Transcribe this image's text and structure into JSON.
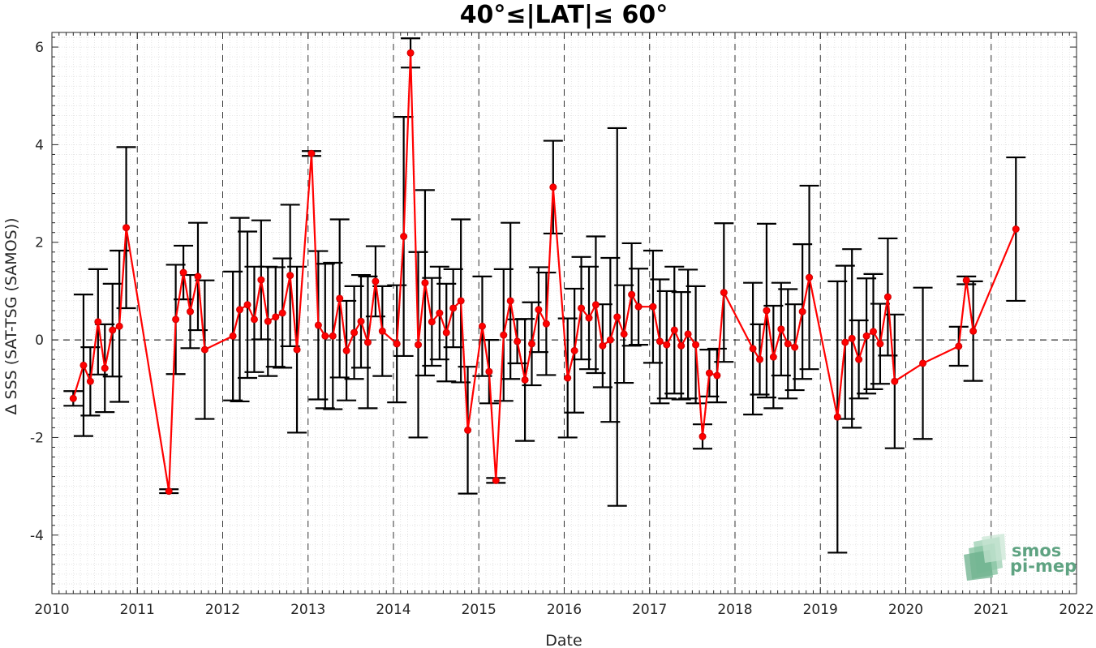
{
  "chart_data": {
    "type": "line",
    "title": "40°≤|LAT|≤ 60°",
    "xlabel": "Date",
    "ylabel": "Δ SSS (SAT-TSG (SAMOS))",
    "xlim": [
      2010,
      2022
    ],
    "ylim": [
      -5.2,
      6.3
    ],
    "x_ticks": [
      "2010",
      "2011",
      "2012",
      "2013",
      "2014",
      "2015",
      "2016",
      "2017",
      "2018",
      "2019",
      "2020",
      "2021",
      "2022"
    ],
    "y_ticks": [
      "-4",
      "-2",
      "0",
      "2",
      "4",
      "6"
    ],
    "grid": "minor dotted, year dashed lines, dashed zero line",
    "colors": {
      "line": "#ff0000",
      "errorbar": "#000000",
      "zero_line": "#000000",
      "logo": "#5fa382"
    },
    "logo": {
      "line1": "smos",
      "line2": "pi-mep"
    },
    "series": [
      {
        "points": [
          [
            2010.25,
            -1.2,
            0.15
          ],
          [
            2010.37,
            -0.52,
            1.45
          ],
          [
            2010.45,
            -0.85,
            0.7
          ],
          [
            2010.54,
            0.37,
            1.08
          ],
          [
            2010.62,
            -0.58,
            0.9
          ],
          [
            2010.71,
            0.2,
            0.95
          ],
          [
            2010.79,
            0.28,
            1.55
          ],
          [
            2010.87,
            2.3,
            1.65
          ],
          [
            2011.37,
            -3.1,
            0.04
          ],
          [
            2011.45,
            0.42,
            1.12
          ],
          [
            2011.54,
            1.38,
            0.55
          ],
          [
            2011.62,
            0.58,
            0.75
          ],
          [
            2011.71,
            1.3,
            1.1
          ],
          [
            2011.79,
            -0.2,
            1.42
          ],
          [
            2012.12,
            0.08,
            1.32
          ],
          [
            2012.2,
            0.62,
            1.88
          ],
          [
            2012.29,
            0.72,
            1.5
          ],
          [
            2012.37,
            0.42,
            1.08
          ],
          [
            2012.45,
            1.23,
            1.22
          ],
          [
            2012.53,
            0.38,
            1.12
          ],
          [
            2012.62,
            0.47,
            1.02
          ],
          [
            2012.7,
            0.55,
            1.12
          ],
          [
            2012.79,
            1.32,
            1.45
          ],
          [
            2012.87,
            -0.2,
            1.7
          ],
          [
            2013.04,
            3.82,
            0.05
          ],
          [
            2013.12,
            0.3,
            1.52
          ],
          [
            2013.2,
            0.08,
            1.48
          ],
          [
            2013.29,
            0.08,
            1.5
          ],
          [
            2013.37,
            0.85,
            1.62
          ],
          [
            2013.45,
            -0.22,
            1.02
          ],
          [
            2013.54,
            0.15,
            0.95
          ],
          [
            2013.62,
            0.38,
            0.95
          ],
          [
            2013.7,
            -0.05,
            1.35
          ],
          [
            2013.79,
            1.2,
            0.72
          ],
          [
            2013.87,
            0.18,
            0.92
          ],
          [
            2014.04,
            -0.08,
            1.2
          ],
          [
            2014.12,
            2.12,
            2.45
          ],
          [
            2014.2,
            5.88,
            0.3
          ],
          [
            2014.29,
            -0.1,
            1.9
          ],
          [
            2014.37,
            1.17,
            1.9
          ],
          [
            2014.45,
            0.37,
            0.9
          ],
          [
            2014.54,
            0.55,
            0.95
          ],
          [
            2014.62,
            0.15,
            1.0
          ],
          [
            2014.7,
            0.65,
            0.8
          ],
          [
            2014.79,
            0.8,
            1.67
          ],
          [
            2014.87,
            -1.85,
            1.3
          ],
          [
            2015.04,
            0.28,
            1.02
          ],
          [
            2015.12,
            -0.65,
            0.65
          ],
          [
            2015.2,
            -2.88,
            0.05
          ],
          [
            2015.29,
            0.1,
            1.35
          ],
          [
            2015.37,
            0.8,
            1.6
          ],
          [
            2015.45,
            -0.03,
            0.45
          ],
          [
            2015.54,
            -0.82,
            1.25
          ],
          [
            2015.62,
            -0.08,
            0.85
          ],
          [
            2015.7,
            0.62,
            0.87
          ],
          [
            2015.79,
            0.33,
            1.05
          ],
          [
            2015.87,
            3.13,
            0.95
          ],
          [
            2016.04,
            -0.78,
            1.22
          ],
          [
            2016.12,
            -0.22,
            1.27
          ],
          [
            2016.2,
            0.65,
            1.05
          ],
          [
            2016.29,
            0.45,
            1.05
          ],
          [
            2016.37,
            0.72,
            1.4
          ],
          [
            2016.45,
            -0.12,
            0.85
          ],
          [
            2016.54,
            0.0,
            1.68
          ],
          [
            2016.62,
            0.47,
            3.87
          ],
          [
            2016.7,
            0.12,
            1.0
          ],
          [
            2016.79,
            0.93,
            1.05
          ],
          [
            2016.87,
            0.68,
            0.78
          ],
          [
            2017.04,
            0.68,
            1.15
          ],
          [
            2017.12,
            -0.03,
            1.27
          ],
          [
            2017.2,
            -0.1,
            1.1
          ],
          [
            2017.29,
            0.2,
            1.3
          ],
          [
            2017.37,
            -0.12,
            1.1
          ],
          [
            2017.45,
            0.12,
            1.32
          ],
          [
            2017.54,
            -0.1,
            1.2
          ],
          [
            2017.62,
            -1.98,
            0.25
          ],
          [
            2017.7,
            -0.68,
            0.48
          ],
          [
            2017.79,
            -0.73,
            0.55
          ],
          [
            2017.87,
            0.97,
            1.42
          ],
          [
            2018.21,
            -0.18,
            1.35
          ],
          [
            2018.29,
            -0.4,
            0.72
          ],
          [
            2018.37,
            0.6,
            1.78
          ],
          [
            2018.45,
            -0.35,
            1.05
          ],
          [
            2018.54,
            0.22,
            0.95
          ],
          [
            2018.62,
            -0.08,
            1.12
          ],
          [
            2018.7,
            -0.15,
            0.88
          ],
          [
            2018.79,
            0.58,
            1.38
          ],
          [
            2018.87,
            1.28,
            1.88
          ],
          [
            2019.2,
            -1.58,
            2.78
          ],
          [
            2019.29,
            -0.05,
            1.57
          ],
          [
            2019.37,
            0.03,
            1.83
          ],
          [
            2019.45,
            -0.4,
            0.8
          ],
          [
            2019.54,
            0.08,
            1.18
          ],
          [
            2019.62,
            0.17,
            1.18
          ],
          [
            2019.7,
            -0.08,
            0.82
          ],
          [
            2019.79,
            0.88,
            1.2
          ],
          [
            2019.87,
            -0.85,
            1.37
          ],
          [
            2020.2,
            -0.48,
            1.55
          ],
          [
            2020.62,
            -0.13,
            0.4
          ],
          [
            2020.71,
            1.22,
            0.08
          ],
          [
            2020.79,
            0.18,
            1.02
          ],
          [
            2021.29,
            2.27,
            1.47
          ]
        ]
      }
    ]
  }
}
